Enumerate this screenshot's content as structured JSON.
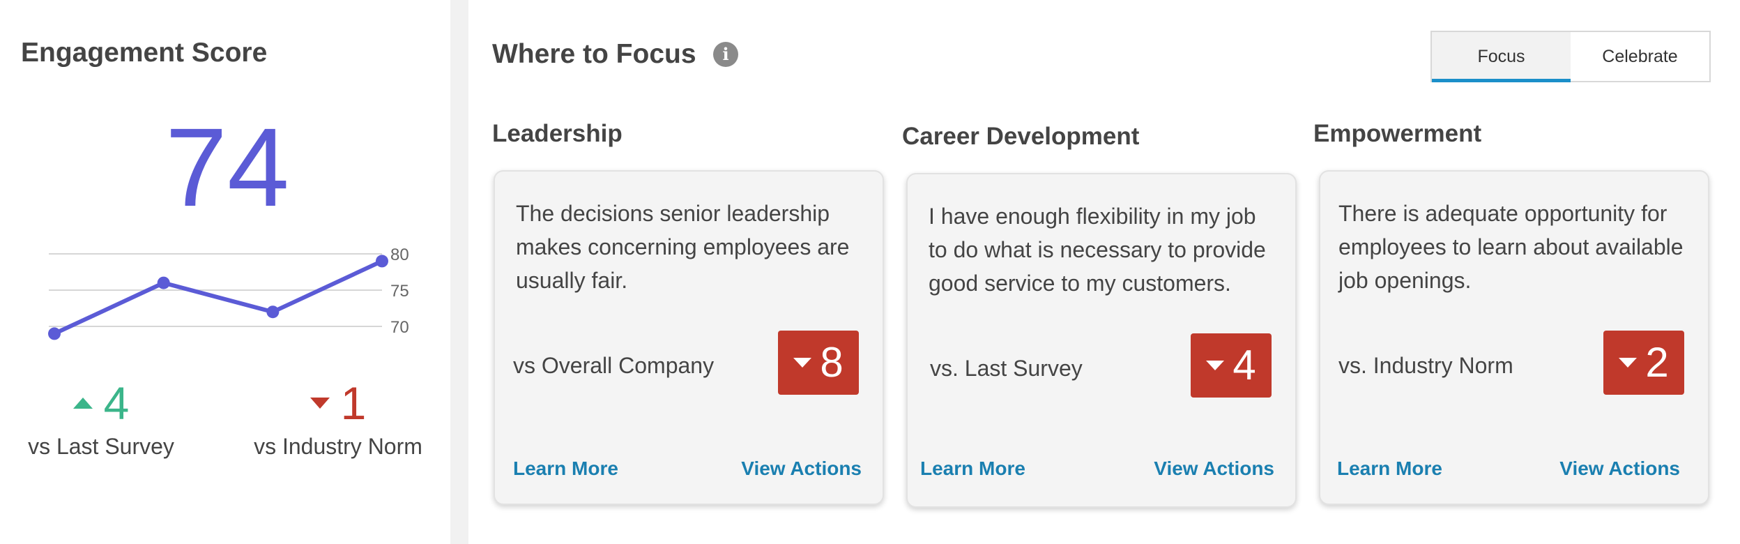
{
  "engagement": {
    "title": "Engagement Score",
    "score": "74",
    "vs_last_survey": {
      "value": "4",
      "label": "vs Last Survey",
      "direction": "up",
      "color": "#3bb58a"
    },
    "vs_industry_norm": {
      "value": "1",
      "label": "vs Industry Norm",
      "direction": "down",
      "color": "#c0392b"
    }
  },
  "chart_data": {
    "type": "line",
    "x": [
      1,
      2,
      3,
      4
    ],
    "series": [
      {
        "values": [
          69,
          76,
          72,
          79
        ]
      }
    ],
    "yticks": [
      "80",
      "75",
      "70"
    ],
    "ylim": [
      70,
      80
    ],
    "grid": true,
    "color": "#5b5bd6"
  },
  "focus": {
    "title": "Where to Focus",
    "info_icon": "info-icon",
    "toggle": {
      "options": [
        "Focus",
        "Celebrate"
      ],
      "selected": "Focus",
      "accent": "#1b8fc9"
    },
    "columns": [
      {
        "title": "Leadership",
        "statement": "The decisions senior leadership makes concerning employees are usually fair.",
        "compare_label": "vs Overall Company",
        "delta": "8",
        "direction": "down",
        "learn_more": "Learn More",
        "view_actions": "View Actions"
      },
      {
        "title": "Career Development",
        "statement": "I have enough flexibility in my job to do what is necessary to provide good service to my customers.",
        "compare_label": "vs. Last Survey",
        "delta": "4",
        "direction": "down",
        "learn_more": "Learn More",
        "view_actions": "View Actions"
      },
      {
        "title": "Empowerment",
        "statement": "There is adequate opportunity for employees to learn about available job openings.",
        "compare_label": "vs. Industry Norm",
        "delta": "2",
        "direction": "down",
        "learn_more": "Learn More",
        "view_actions": "View Actions"
      }
    ],
    "badge_color": "#c0392b",
    "link_color": "#1a7fb0"
  }
}
